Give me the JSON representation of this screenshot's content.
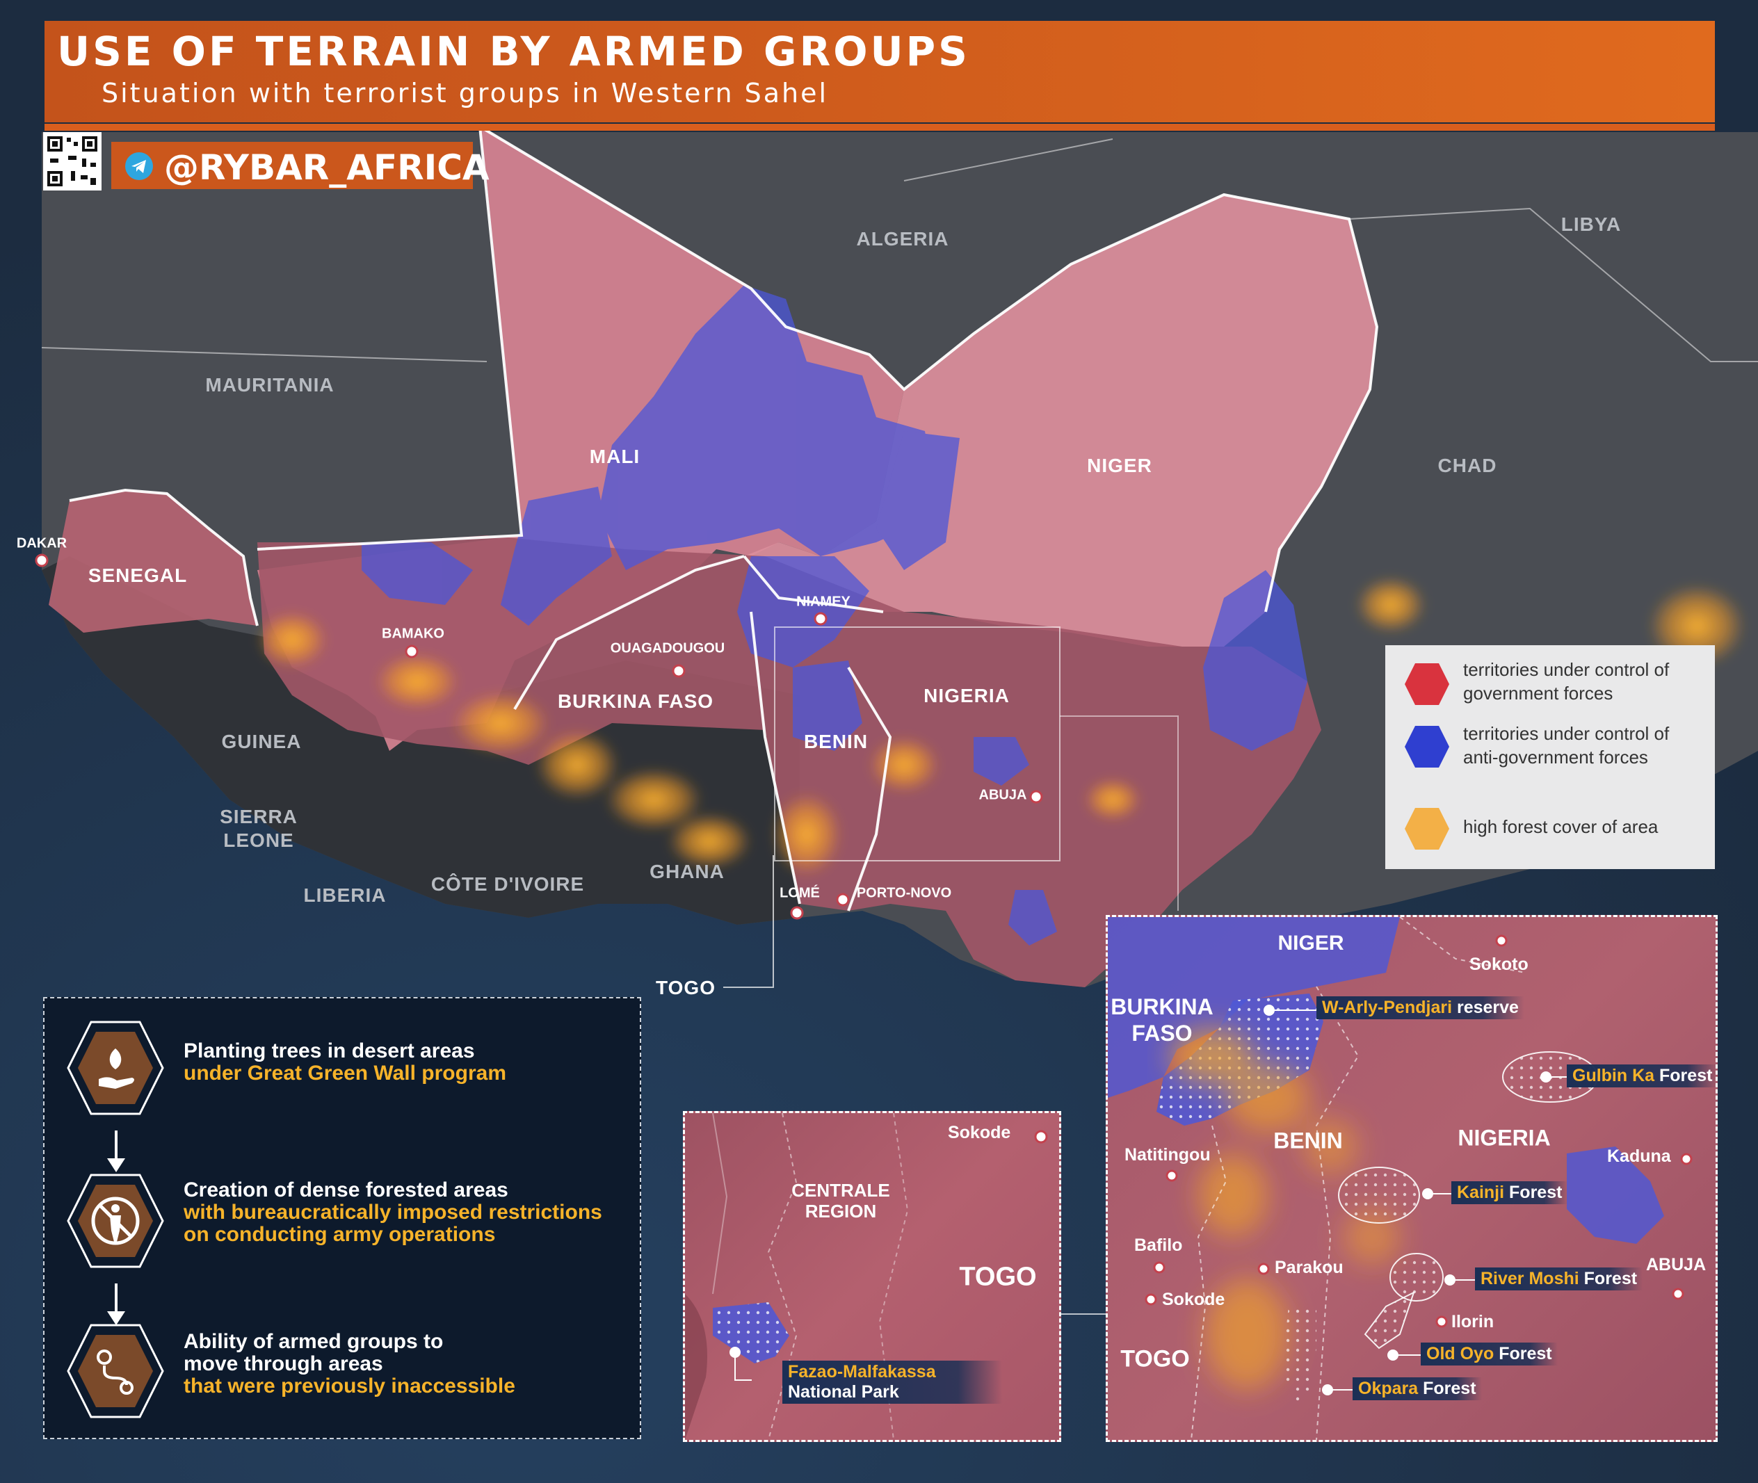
{
  "header": {
    "title": "USE OF TERRAIN BY ARMED GROUPS",
    "subtitle": "Situation with terrorist groups in Western Sahel",
    "handle": "@RYBAR_AFRICA"
  },
  "colors": {
    "government": "#d9333e",
    "anti_government": "#2f3fd0",
    "forest": "#f5a62a",
    "header": "#cd5a1c"
  },
  "countries": {
    "algeria": "ALGERIA",
    "libya": "LIBYA",
    "mauritania": "MAURITANIA",
    "mali": "MALI",
    "niger": "NIGER",
    "chad": "CHAD",
    "senegal": "SENEGAL",
    "burkina_faso": "BURKINA FASO",
    "nigeria": "NIGERIA",
    "benin": "BENIN",
    "guinea": "GUINEA",
    "sierra_leone": "SIERRA\nLEONE",
    "liberia": "LIBERIA",
    "cote_divoire": "CÔTE D'IVOIRE",
    "ghana": "GHANA",
    "togo": "TOGO"
  },
  "cities": {
    "dakar": "DAKAR",
    "bamako": "BAMAKO",
    "niamey": "NIAMEY",
    "ouagadougou": "OUAGADOUGOU",
    "abuja": "ABUJA",
    "lome": "LOMÉ",
    "porto_novo": "PORTO-NOVO"
  },
  "legend": {
    "government": "territories under control of government forces",
    "anti_government": "territories under control of anti-government forces",
    "forest": "high forest cover of area"
  },
  "steps": [
    {
      "line1": "Planting trees in desert areas",
      "highlight": "under Great Green Wall program",
      "icon": "tree-hand-icon"
    },
    {
      "line1": "Creation of dense forested areas",
      "highlight": "with bureaucratically imposed restrictions on conducting army operations",
      "icon": "no-soldier-icon"
    },
    {
      "line1": "Ability of armed groups to move through areas",
      "highlight": "that were previously inaccessible",
      "icon": "route-icon"
    }
  ],
  "inset_togo": {
    "city": "Sokode",
    "region": "CENTRALE\nREGION",
    "country": "TOGO",
    "park_name": "Fazao-Malfakassa",
    "park_suffix": "National Park"
  },
  "inset_nigeria": {
    "niger": "NIGER",
    "burkina": "BURKINA\nFASO",
    "benin": "BENIN",
    "nigeria": "NIGERIA",
    "togo": "TOGO",
    "cities": {
      "sokoto": "Sokoto",
      "natitingou": "Natitingou",
      "kaduna": "Kaduna",
      "bafilo": "Bafilo",
      "parakou": "Parakou",
      "sokode": "Sokode",
      "abuja": "ABUJA",
      "ilorin": "Ilorin"
    },
    "forests": {
      "w_arly": {
        "name": "W-Arly-Pendjari",
        "suffix": "reserve"
      },
      "gulbin": {
        "name": "Gulbin Ka",
        "suffix": "Forest"
      },
      "kainji": {
        "name": "Kainji",
        "suffix": "Forest"
      },
      "river_moshi": {
        "name": "River Moshi",
        "suffix": "Forest"
      },
      "old_oyo": {
        "name": "Old Oyo",
        "suffix": "Forest"
      },
      "okpara": {
        "name": "Okpara",
        "suffix": "Forest"
      }
    }
  }
}
